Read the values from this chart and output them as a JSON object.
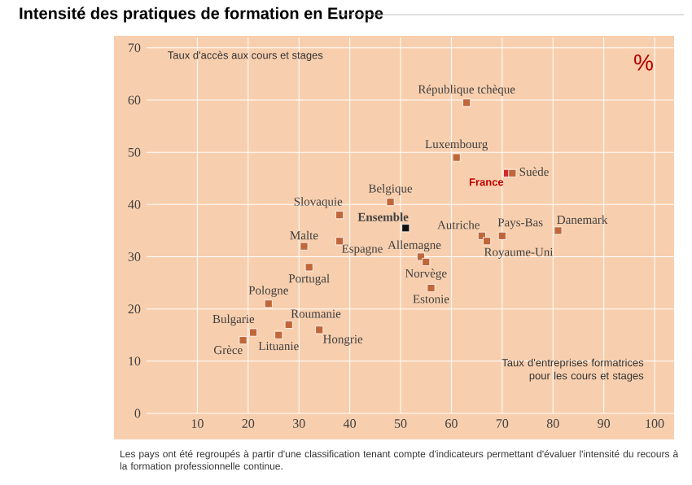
{
  "chart_data": {
    "type": "scatter",
    "title": "Intensité des pratiques de formation en Europe",
    "xlabel": "Taux d'entreprises formatrices pour les cours et stages",
    "ylabel": "Taux d'accès aux cours et stages",
    "xlim": [
      0,
      104
    ],
    "ylim": [
      0,
      72
    ],
    "xticks": [
      10,
      20,
      30,
      40,
      50,
      60,
      70,
      80,
      90,
      100
    ],
    "yticks": [
      0,
      10,
      20,
      30,
      40,
      50,
      60,
      70
    ],
    "grid": true,
    "marker": "square",
    "x": [
      63,
      61,
      71,
      72,
      48,
      51,
      38,
      31,
      38,
      32,
      66,
      54,
      55,
      56,
      67,
      70,
      81,
      24,
      21,
      19,
      26,
      28,
      34
    ],
    "series": [
      {
        "values": [
          59.5,
          49,
          46,
          46,
          40.5,
          35.5,
          38,
          32,
          33,
          28,
          34,
          30,
          29,
          24,
          33,
          34,
          35,
          21,
          15.5,
          14,
          15,
          17,
          16
        ],
        "colors": [
          "#c0673a",
          "#c0673a",
          "#d42a2a",
          "#c0673a",
          "#c0673a",
          "#111111",
          "#c0673a",
          "#c0673a",
          "#c0673a",
          "#c0673a",
          "#c0673a",
          "#c0673a",
          "#c0673a",
          "#c0673a",
          "#c0673a",
          "#c0673a",
          "#c0673a",
          "#c0673a",
          "#c0673a",
          "#c0673a",
          "#c0673a",
          "#c0673a",
          "#c0673a"
        ]
      }
    ],
    "annotations": [
      {
        "text": "République tchèque",
        "x": 63,
        "y": 59.5
      },
      {
        "text": "Luxembourg",
        "x": 61,
        "y": 49
      },
      {
        "text": "France",
        "x": 71,
        "y": 46
      },
      {
        "text": "Suède",
        "x": 72,
        "y": 46
      },
      {
        "text": "Belgique",
        "x": 48,
        "y": 40.5
      },
      {
        "text": "Ensemble",
        "x": 51,
        "y": 35.5
      },
      {
        "text": "Slovaquie",
        "x": 38,
        "y": 38
      },
      {
        "text": "Malte",
        "x": 31,
        "y": 32
      },
      {
        "text": "Espagne",
        "x": 38,
        "y": 33
      },
      {
        "text": "Portugal",
        "x": 32,
        "y": 28
      },
      {
        "text": "Autriche",
        "x": 66,
        "y": 34
      },
      {
        "text": "Allemagne",
        "x": 54,
        "y": 30
      },
      {
        "text": "Norvège",
        "x": 55,
        "y": 29
      },
      {
        "text": "Estonie",
        "x": 56,
        "y": 24
      },
      {
        "text": "Royaume-Uni",
        "x": 67,
        "y": 33
      },
      {
        "text": "Pays-Bas",
        "x": 70,
        "y": 34
      },
      {
        "text": "Danemark",
        "x": 81,
        "y": 35
      },
      {
        "text": "Pologne",
        "x": 24,
        "y": 21
      },
      {
        "text": "Bulgarie",
        "x": 21,
        "y": 15.5
      },
      {
        "text": "Grèce",
        "x": 19,
        "y": 14
      },
      {
        "text": "Lituanie",
        "x": 26,
        "y": 15
      },
      {
        "text": "Roumanie",
        "x": 28,
        "y": 17
      },
      {
        "text": "Hongrie",
        "x": 34,
        "y": 16
      },
      "%",
      "Les pays ont été regroupés à partir d'une classification tenant compte d'indicateurs permettant d'évaluer l'intensité du recours à la formation professionnelle continue."
    ]
  }
}
